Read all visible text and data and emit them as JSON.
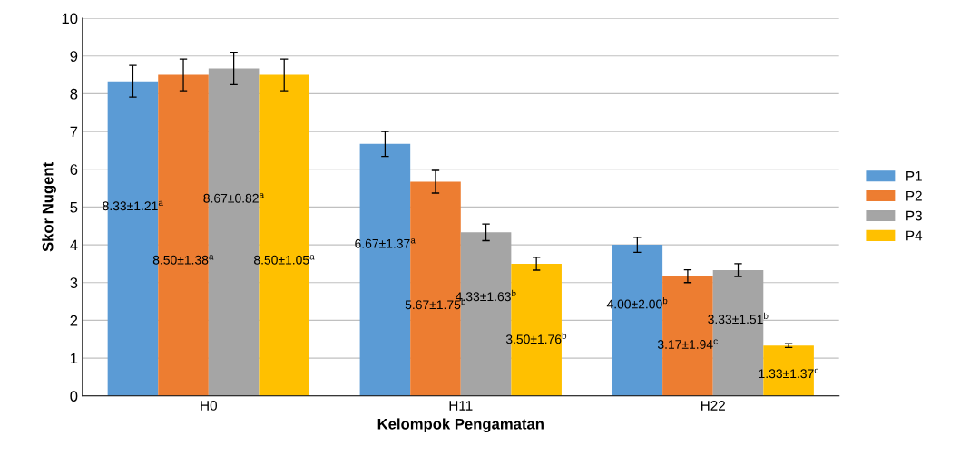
{
  "chart_data": {
    "type": "bar",
    "xlabel": "Kelompok Pengamatan",
    "ylabel": "Skor Nugent",
    "categories": [
      "H0",
      "H11",
      "H22"
    ],
    "series": [
      {
        "name": "P1",
        "color": "#5b9bd5",
        "values": [
          8.33,
          6.67,
          4.0
        ],
        "errors": [
          0.42,
          0.33,
          0.2
        ],
        "value_labels": [
          "8.33±1.21$^{a}$",
          "6.67±1.37$^{a}$",
          "4.00±2.00$^{b}$"
        ]
      },
      {
        "name": "P2",
        "color": "#ed7d31",
        "values": [
          8.5,
          5.67,
          3.17
        ],
        "errors": [
          0.42,
          0.3,
          0.17
        ],
        "value_labels": [
          "8.50±1.38$^{a}$",
          "5.67±1.75$^{b}$",
          "3.17±1.94$^{c}$"
        ]
      },
      {
        "name": "P3",
        "color": "#a5a5a5",
        "values": [
          8.67,
          4.33,
          3.33
        ],
        "errors": [
          0.43,
          0.22,
          0.17
        ],
        "value_labels": [
          "8.67±0.82$^{a}$",
          "4.33±1.63$^{b}$",
          "3.33±1.51$^{b}$"
        ]
      },
      {
        "name": "P4",
        "color": "#ffc000",
        "values": [
          8.5,
          3.5,
          1.33
        ],
        "errors": [
          0.42,
          0.17,
          0.05
        ],
        "value_labels": [
          "8.50±1.05$^{a}$",
          "3.50±1.76$^{b}$",
          "1.33±1.37$^{c}$"
        ]
      }
    ],
    "ylim": [
      0,
      10
    ],
    "yticks": [
      0,
      1,
      2,
      3,
      4,
      5,
      6,
      7,
      8,
      9,
      10
    ],
    "grid": "y",
    "legend": "right"
  }
}
